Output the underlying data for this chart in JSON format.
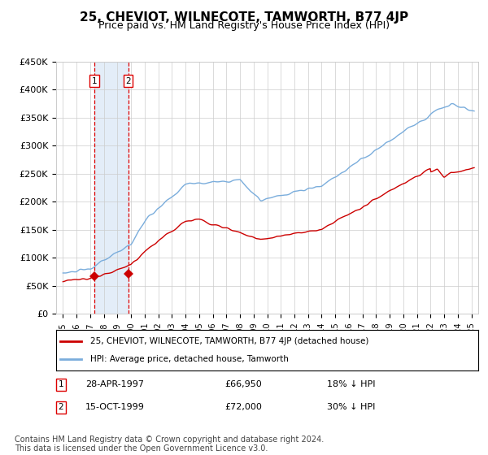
{
  "title": "25, CHEVIOT, WILNECOTE, TAMWORTH, B77 4JP",
  "subtitle": "Price paid vs. HM Land Registry's House Price Index (HPI)",
  "title_fontsize": 11,
  "subtitle_fontsize": 9,
  "hpi_color": "#7aaddc",
  "sale_color": "#cc0000",
  "background_color": "#ffffff",
  "grid_color": "#cccccc",
  "annotation_bg": "#dce9f7",
  "dashed_line_color": "#dd0000",
  "ylim": [
    0,
    450000
  ],
  "yticks": [
    0,
    50000,
    100000,
    150000,
    200000,
    250000,
    300000,
    350000,
    400000,
    450000
  ],
  "ytick_labels": [
    "£0",
    "£50K",
    "£100K",
    "£150K",
    "£200K",
    "£250K",
    "£300K",
    "£350K",
    "£400K",
    "£450K"
  ],
  "sale1_date_label": "28-APR-1997",
  "sale1_price": 66950,
  "sale1_hpi_diff": "18% ↓ HPI",
  "sale1_year": 1997.32,
  "sale2_date_label": "15-OCT-1999",
  "sale2_price": 72000,
  "sale2_hpi_diff": "30% ↓ HPI",
  "sale2_year": 1999.79,
  "legend_label1": "25, CHEVIOT, WILNECOTE, TAMWORTH, B77 4JP (detached house)",
  "legend_label2": "HPI: Average price, detached house, Tamworth",
  "footnote": "Contains HM Land Registry data © Crown copyright and database right 2024.\nThis data is licensed under the Open Government Licence v3.0.",
  "footnote_fontsize": 7
}
